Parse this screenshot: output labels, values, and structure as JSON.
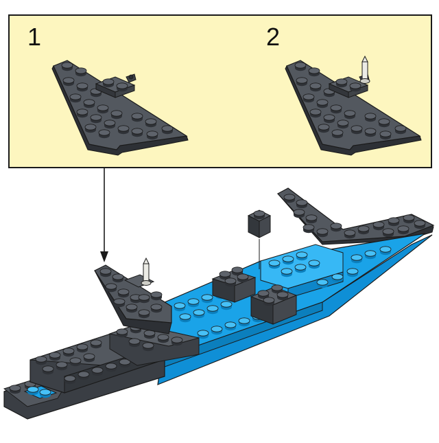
{
  "steps": [
    {
      "number": "1"
    },
    {
      "number": "2"
    }
  ],
  "colors": {
    "callout_bg": "#fdf6bf",
    "dark_gray": "#4b4f55",
    "dark_gray_top": "#5a5f66",
    "blue": "#1aa3e8",
    "blue_light": "#37b8f5",
    "outline": "#1a1a1a",
    "pin": "#e8e8e2"
  },
  "icons": {
    "sub_assembly": "wing-plate-icon",
    "pin": "antenna-pin-icon",
    "arrow": "down-arrow-icon"
  }
}
